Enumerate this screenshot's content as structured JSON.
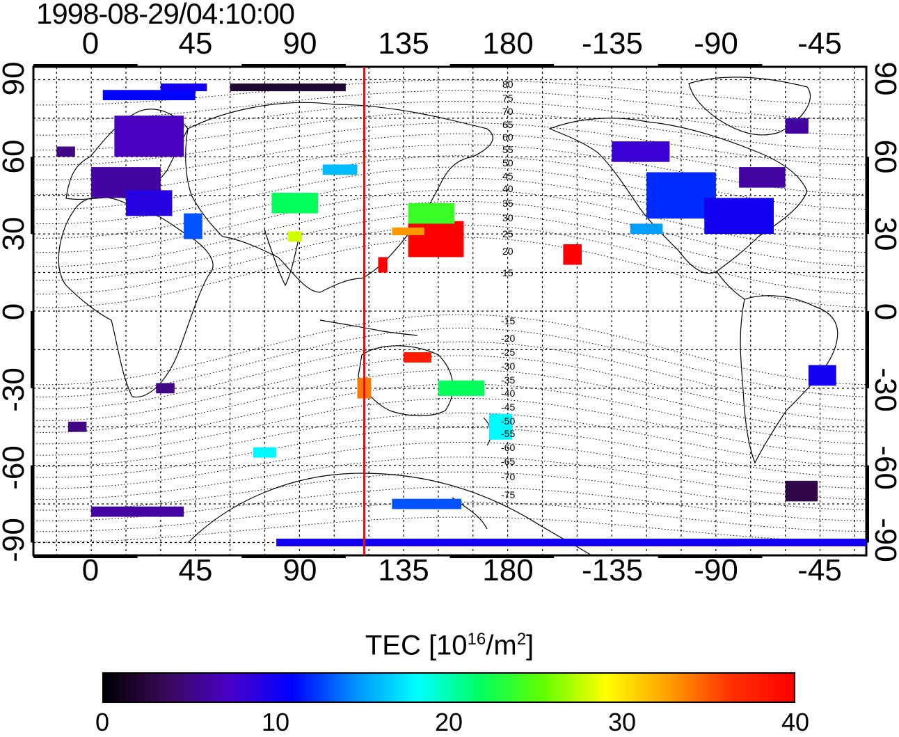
{
  "title": "1998-08-29/04:10:00",
  "map": {
    "top_lon_ticks": [
      "0",
      "45",
      "90",
      "135",
      "180",
      "-135",
      "-90",
      "-45"
    ],
    "bottom_lon_ticks": [
      "0",
      "45",
      "90",
      "135",
      "180",
      "-135",
      "-90",
      "-45"
    ],
    "left_lat_ticks": [
      "90",
      "60",
      "30",
      "0",
      "-30",
      "-60",
      "-90"
    ],
    "right_lat_ticks": [
      "90",
      "60",
      "30",
      "0",
      "-30",
      "-60",
      "-90"
    ],
    "meridian_marker_lon": 118,
    "marker_color": "#e01010",
    "lon_range": [
      -25,
      335
    ],
    "lat_range": [
      -95,
      95
    ],
    "north_contours": [
      "80",
      "75",
      "70",
      "65",
      "60",
      "55",
      "50",
      "45",
      "40",
      "35",
      "30",
      "25",
      "20",
      "15"
    ],
    "south_contours": [
      "-15",
      "-20",
      "-25",
      "-30",
      "-35",
      "-40",
      "-45",
      "-50",
      "-55",
      "-60",
      "-65",
      "-70",
      "-75"
    ]
  },
  "colorbar": {
    "title_prefix": "TEC  [10",
    "title_exp": "16",
    "title_mid": "/m",
    "title_exp2": "2",
    "title_suffix": "]",
    "ticks": [
      "0",
      "10",
      "20",
      "30",
      "40"
    ],
    "range": [
      0,
      40
    ],
    "colors": [
      "#000000",
      "#3a0a5a",
      "#4a00c8",
      "#0000ff",
      "#0090ff",
      "#00ffff",
      "#00ff60",
      "#60ff00",
      "#ffff00",
      "#ffa000",
      "#ff3000",
      "#ff0000"
    ]
  },
  "tec_cells": [
    {
      "lon": 0,
      "lat": 50,
      "w": 30,
      "h": 12,
      "tec": 6
    },
    {
      "lon": 15,
      "lat": 42,
      "w": 20,
      "h": 10,
      "tec": 9
    },
    {
      "lon": 10,
      "lat": 68,
      "w": 30,
      "h": 16,
      "tec": 7
    },
    {
      "lon": 5,
      "lat": 84,
      "w": 40,
      "h": 4,
      "tec": 11
    },
    {
      "lon": -15,
      "lat": 62,
      "w": 8,
      "h": 4,
      "tec": 5
    },
    {
      "lon": 40,
      "lat": 33,
      "w": 8,
      "h": 10,
      "tec": 13
    },
    {
      "lon": 78,
      "lat": 42,
      "w": 20,
      "h": 8,
      "tec": 22
    },
    {
      "lon": 85,
      "lat": 29,
      "w": 6,
      "h": 4,
      "tec": 28
    },
    {
      "lon": 100,
      "lat": 55,
      "w": 15,
      "h": 4,
      "tec": 16
    },
    {
      "lon": 137,
      "lat": 28,
      "w": 24,
      "h": 14,
      "tec": 40
    },
    {
      "lon": 137,
      "lat": 38,
      "w": 20,
      "h": 8,
      "tec": 24
    },
    {
      "lon": 130,
      "lat": 31,
      "w": 14,
      "h": 3,
      "tec": 33
    },
    {
      "lon": 124,
      "lat": 18,
      "w": 4,
      "h": 6,
      "tec": 40
    },
    {
      "lon": 204,
      "lat": 22,
      "w": 8,
      "h": 8,
      "tec": 40
    },
    {
      "lon": 240,
      "lat": 45,
      "w": 30,
      "h": 18,
      "tec": 12
    },
    {
      "lon": 265,
      "lat": 37,
      "w": 30,
      "h": 14,
      "tec": 10
    },
    {
      "lon": 233,
      "lat": 32,
      "w": 14,
      "h": 4,
      "tec": 15
    },
    {
      "lon": 225,
      "lat": 62,
      "w": 25,
      "h": 8,
      "tec": 8
    },
    {
      "lon": 280,
      "lat": 52,
      "w": 20,
      "h": 8,
      "tec": 6
    },
    {
      "lon": 300,
      "lat": 72,
      "w": 10,
      "h": 6,
      "tec": 6
    },
    {
      "lon": 310,
      "lat": -25,
      "w": 12,
      "h": 8,
      "tec": 10
    },
    {
      "lon": 300,
      "lat": -70,
      "w": 14,
      "h": 8,
      "tec": 3
    },
    {
      "lon": 172,
      "lat": -45,
      "w": 10,
      "h": 10,
      "tec": 18
    },
    {
      "lon": 150,
      "lat": -30,
      "w": 20,
      "h": 6,
      "tec": 22
    },
    {
      "lon": 135,
      "lat": -18,
      "w": 12,
      "h": 4,
      "tec": 38
    },
    {
      "lon": 115,
      "lat": -30,
      "w": 6,
      "h": 8,
      "tec": 34
    },
    {
      "lon": 28,
      "lat": -30,
      "w": 8,
      "h": 4,
      "tec": 5
    },
    {
      "lon": -10,
      "lat": -45,
      "w": 8,
      "h": 4,
      "tec": 5
    },
    {
      "lon": 70,
      "lat": -55,
      "w": 10,
      "h": 4,
      "tec": 18
    },
    {
      "lon": 0,
      "lat": -78,
      "w": 40,
      "h": 4,
      "tec": 6
    },
    {
      "lon": 130,
      "lat": -75,
      "w": 30,
      "h": 4,
      "tec": 13
    },
    {
      "lon": 80,
      "lat": -90,
      "w": 200,
      "h": 3,
      "tec": 10
    },
    {
      "lon": 270,
      "lat": -90,
      "w": 140,
      "h": 3,
      "tec": 10
    },
    {
      "lon": 60,
      "lat": 87,
      "w": 50,
      "h": 3,
      "tec": 2
    },
    {
      "lon": 30,
      "lat": 87,
      "w": 20,
      "h": 3,
      "tec": 10
    }
  ]
}
